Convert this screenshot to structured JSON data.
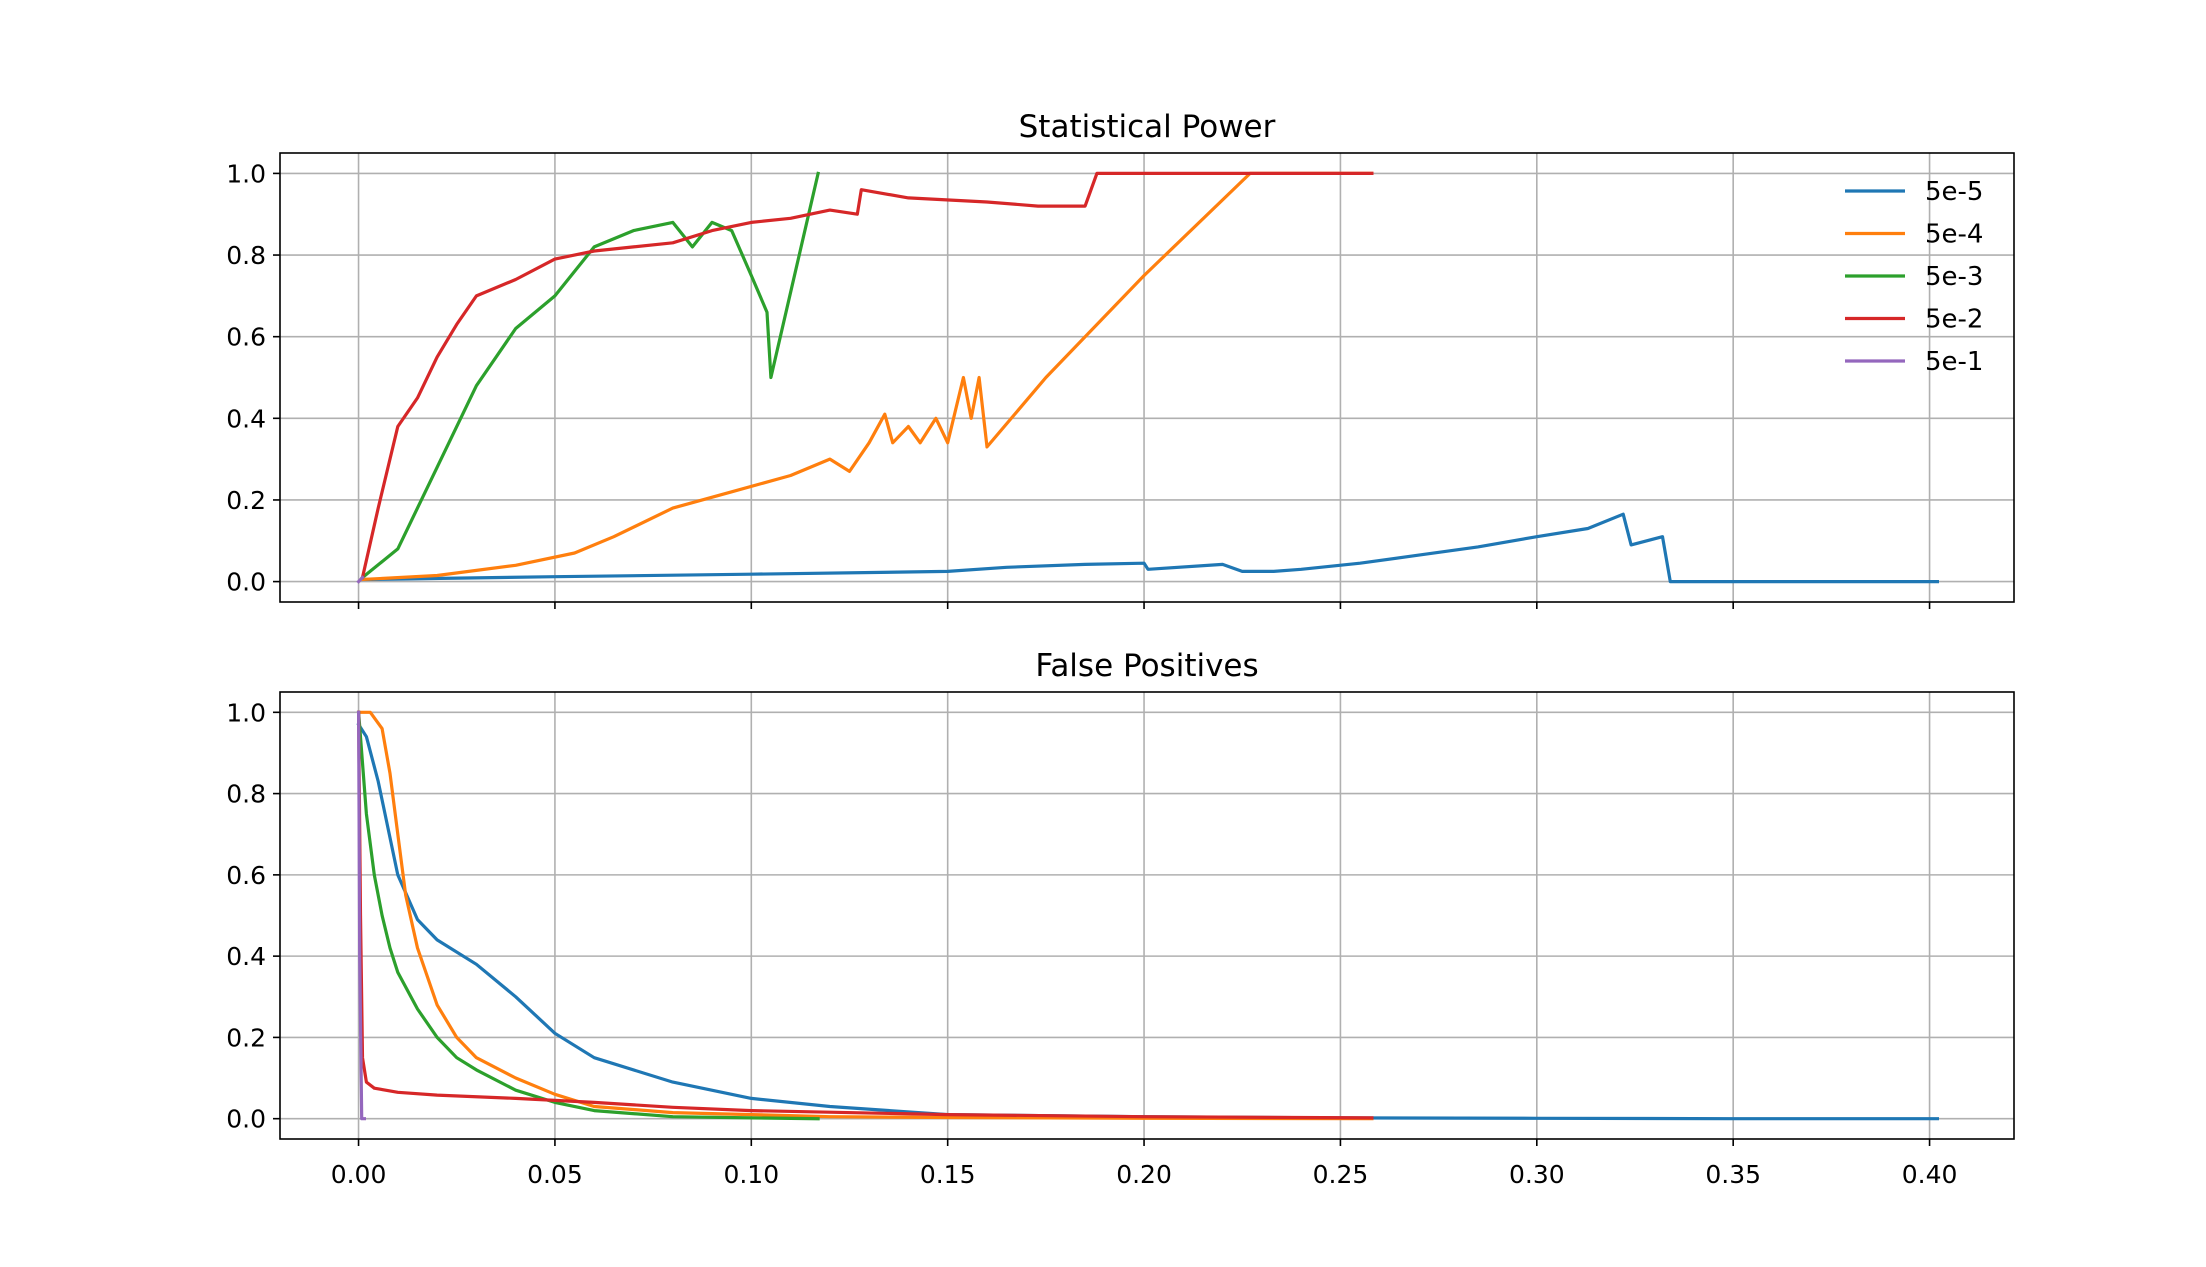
{
  "chart_data": [
    {
      "type": "line",
      "title": "Statistical Power",
      "xlabel": "",
      "ylabel": "",
      "xlim": [
        -0.02,
        0.4215
      ],
      "ylim": [
        -0.05,
        1.05
      ],
      "x_ticks": [
        0.0,
        0.05,
        0.1,
        0.15,
        0.2,
        0.25,
        0.3,
        0.35,
        0.4
      ],
      "x_tick_labels_visible": false,
      "y_ticks": [
        "0.0",
        "0.2",
        "0.4",
        "0.6",
        "0.8",
        "1.0"
      ],
      "grid": true,
      "legend": "top-right",
      "series": [
        {
          "name": "5e-5",
          "color": "#1f77b4",
          "x": [
            0.001,
            0.05,
            0.1,
            0.15,
            0.165,
            0.185,
            0.2,
            0.201,
            0.22,
            0.225,
            0.233,
            0.24,
            0.255,
            0.27,
            0.285,
            0.3,
            0.313,
            0.322,
            0.324,
            0.328,
            0.332,
            0.334,
            0.35,
            0.402
          ],
          "y": [
            0.005,
            0.012,
            0.018,
            0.025,
            0.035,
            0.042,
            0.045,
            0.03,
            0.042,
            0.025,
            0.025,
            0.03,
            0.045,
            0.065,
            0.085,
            0.11,
            0.13,
            0.165,
            0.09,
            0.1,
            0.11,
            0.0,
            0.0,
            0.0
          ]
        },
        {
          "name": "5e-4",
          "color": "#ff7f0e",
          "x": [
            0.001,
            0.02,
            0.04,
            0.055,
            0.065,
            0.08,
            0.095,
            0.11,
            0.12,
            0.125,
            0.13,
            0.134,
            0.136,
            0.14,
            0.143,
            0.147,
            0.15,
            0.152,
            0.154,
            0.156,
            0.158,
            0.16,
            0.175,
            0.2,
            0.227,
            0.258
          ],
          "y": [
            0.005,
            0.015,
            0.04,
            0.07,
            0.11,
            0.18,
            0.22,
            0.26,
            0.3,
            0.27,
            0.34,
            0.41,
            0.34,
            0.38,
            0.34,
            0.4,
            0.34,
            0.42,
            0.5,
            0.4,
            0.5,
            0.33,
            0.5,
            0.75,
            1.0,
            1.0
          ]
        },
        {
          "name": "5e-3",
          "color": "#2ca02c",
          "x": [
            0.001,
            0.01,
            0.02,
            0.03,
            0.04,
            0.05,
            0.06,
            0.07,
            0.08,
            0.085,
            0.09,
            0.095,
            0.1,
            0.104,
            0.105,
            0.117
          ],
          "y": [
            0.01,
            0.08,
            0.28,
            0.48,
            0.62,
            0.7,
            0.82,
            0.86,
            0.88,
            0.82,
            0.88,
            0.86,
            0.75,
            0.66,
            0.5,
            1.0
          ]
        },
        {
          "name": "5e-2",
          "color": "#d62728",
          "x": [
            0.001,
            0.005,
            0.01,
            0.015,
            0.02,
            0.025,
            0.03,
            0.04,
            0.05,
            0.06,
            0.07,
            0.08,
            0.09,
            0.1,
            0.11,
            0.12,
            0.127,
            0.128,
            0.14,
            0.16,
            0.173,
            0.185,
            0.188,
            0.2,
            0.258
          ],
          "y": [
            0.01,
            0.18,
            0.38,
            0.45,
            0.55,
            0.63,
            0.7,
            0.74,
            0.79,
            0.81,
            0.82,
            0.83,
            0.86,
            0.88,
            0.89,
            0.91,
            0.9,
            0.96,
            0.94,
            0.93,
            0.92,
            0.92,
            1.0,
            1.0,
            1.0
          ]
        },
        {
          "name": "5e-1",
          "color": "#9467bd",
          "x": [
            0.0,
            0.001
          ],
          "y": [
            0.0,
            0.01
          ]
        }
      ]
    },
    {
      "type": "line",
      "title": "False Positives",
      "xlabel": "",
      "ylabel": "",
      "xlim": [
        -0.02,
        0.4215
      ],
      "ylim": [
        -0.05,
        1.05
      ],
      "x_ticks": [
        "0.00",
        "0.05",
        "0.10",
        "0.15",
        "0.20",
        "0.25",
        "0.30",
        "0.35",
        "0.40"
      ],
      "x_tick_labels_visible": true,
      "y_ticks": [
        "0.0",
        "0.2",
        "0.4",
        "0.6",
        "0.8",
        "1.0"
      ],
      "grid": true,
      "series": [
        {
          "name": "5e-5",
          "color": "#1f77b4",
          "x": [
            0.0,
            0.002,
            0.005,
            0.01,
            0.015,
            0.02,
            0.03,
            0.04,
            0.05,
            0.06,
            0.08,
            0.1,
            0.12,
            0.15,
            0.2,
            0.25,
            0.3,
            0.35,
            0.402
          ],
          "y": [
            0.97,
            0.94,
            0.83,
            0.6,
            0.49,
            0.44,
            0.38,
            0.3,
            0.21,
            0.15,
            0.09,
            0.05,
            0.03,
            0.01,
            0.005,
            0.002,
            0.001,
            0.0,
            0.0
          ]
        },
        {
          "name": "5e-4",
          "color": "#ff7f0e",
          "x": [
            0.0,
            0.003,
            0.006,
            0.008,
            0.01,
            0.012,
            0.015,
            0.02,
            0.025,
            0.03,
            0.04,
            0.05,
            0.06,
            0.08,
            0.1,
            0.12,
            0.15,
            0.2,
            0.258
          ],
          "y": [
            1.0,
            1.0,
            0.96,
            0.85,
            0.7,
            0.55,
            0.42,
            0.28,
            0.2,
            0.15,
            0.1,
            0.06,
            0.03,
            0.015,
            0.01,
            0.005,
            0.003,
            0.001,
            0.0
          ]
        },
        {
          "name": "5e-3",
          "color": "#2ca02c",
          "x": [
            0.0,
            0.002,
            0.004,
            0.006,
            0.008,
            0.01,
            0.015,
            0.02,
            0.025,
            0.03,
            0.04,
            0.05,
            0.06,
            0.08,
            0.1,
            0.117
          ],
          "y": [
            1.0,
            0.75,
            0.6,
            0.5,
            0.42,
            0.36,
            0.27,
            0.2,
            0.15,
            0.12,
            0.07,
            0.04,
            0.02,
            0.005,
            0.002,
            0.0
          ]
        },
        {
          "name": "5e-2",
          "color": "#d62728",
          "x": [
            0.0,
            0.0005,
            0.001,
            0.002,
            0.004,
            0.01,
            0.02,
            0.04,
            0.06,
            0.08,
            0.1,
            0.15,
            0.2,
            0.258
          ],
          "y": [
            1.0,
            0.5,
            0.15,
            0.09,
            0.075,
            0.065,
            0.058,
            0.05,
            0.04,
            0.028,
            0.02,
            0.01,
            0.005,
            0.002
          ]
        },
        {
          "name": "5e-1",
          "color": "#9467bd",
          "x": [
            0.0,
            0.0003,
            0.0008,
            0.0015
          ],
          "y": [
            1.0,
            0.4,
            0.0,
            0.0
          ]
        }
      ]
    }
  ]
}
